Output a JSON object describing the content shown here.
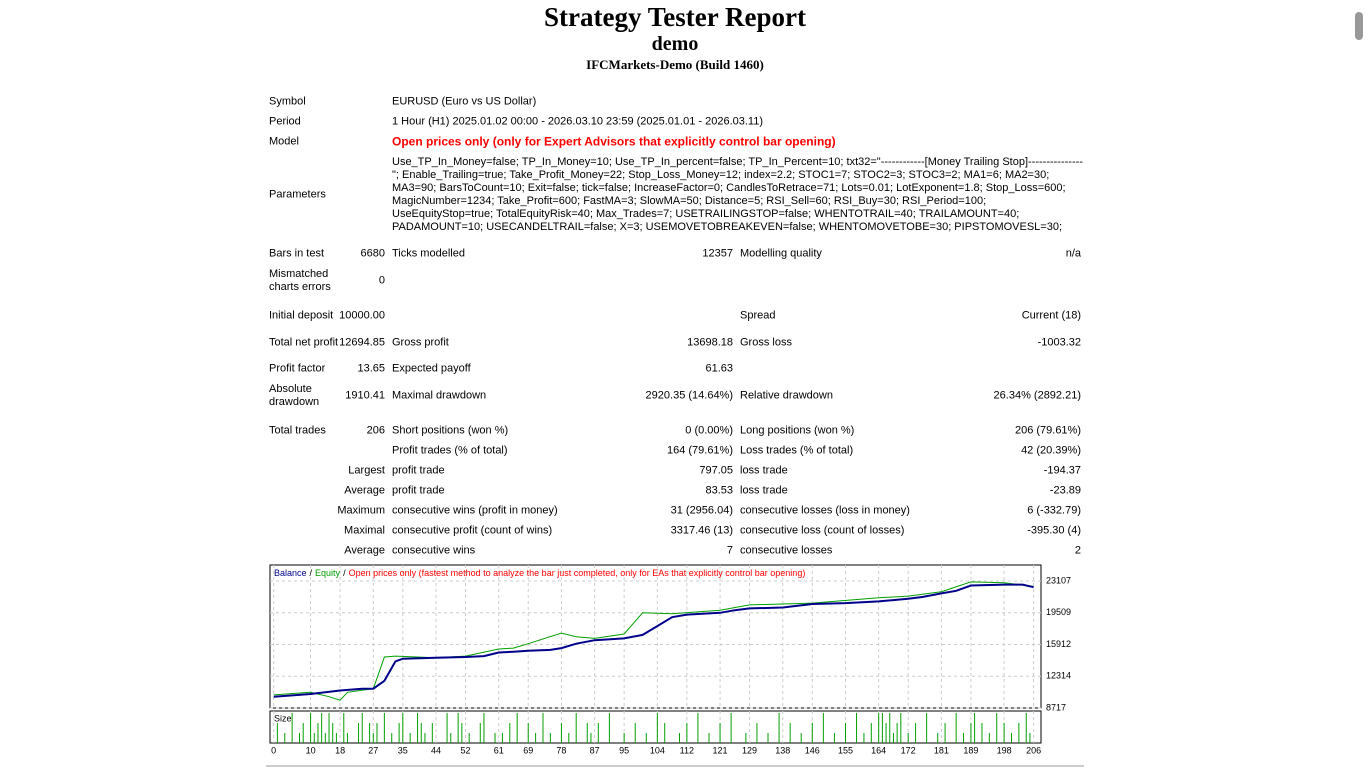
{
  "header": {
    "title": "Strategy Tester Report",
    "subtitle": "demo",
    "server": "IFCMarkets-Demo (Build 1460)"
  },
  "settings": [
    {
      "label": "Symbol",
      "value": "EURUSD (Euro vs US Dollar)"
    },
    {
      "label": "Period",
      "value": "1 Hour (H1) 2025.01.02 00:00 - 2026.03.10 23:59 (2025.01.01 - 2026.03.11)"
    },
    {
      "label": "Model",
      "value": "Open prices only (only for Expert Advisors that explicitly control bar opening)"
    },
    {
      "label": "Parameters",
      "value": "Use_TP_In_Money=false; TP_In_Money=10; Use_TP_In_percent=false; TP_In_Percent=10; txt32=\"------------[Money Trailing Stop]---------------\"; Enable_Trailing=true; Take_Profit_Money=22; Stop_Loss_Money=12; index=2.2; STOC1=7; STOC2=3; STOC3=2; MA1=6; MA2=30; MA3=90; BarsToCount=10; Exit=false; tick=false; IncreaseFactor=0; CandlesToRetrace=71; Lots=0.01; LotExponent=1.8; Stop_Loss=600; MagicNumber=1234; Take_Profit=600; FastMA=3; SlowMA=50; Distance=5; RSI_Sell=60; RSI_Buy=30; RSI_Period=100; UseEquityStop=true; TotalEquityRisk=40; Max_Trades=7; USETRAILINGSTOP=false; WHENTOTRAIL=40; TRAILAMOUNT=40; PADAMOUNT=10; USECANDELTRAIL=false; X=3; USEMOVETOBREAKEVEN=false; WHENTOMOVETOBE=30; PIPSTOMOVESL=30;"
    }
  ],
  "rows": [
    {
      "c1": "Bars in test",
      "c2": "6680",
      "c3": "Ticks modelled",
      "c4": "12357",
      "c5": "Modelling quality",
      "c6": "n/a"
    },
    {
      "c1": "Mismatched charts errors",
      "c2": "0"
    },
    {
      "c1": "Initial deposit",
      "c2": "10000.00",
      "c5": "Spread",
      "c6": "Current (18)"
    },
    {
      "c1": "Total net profit",
      "c2": "12694.85",
      "c3": "Gross profit",
      "c4": "13698.18",
      "c5": "Gross loss",
      "c6": "-1003.32"
    },
    {
      "c1": "Profit factor",
      "c2": "13.65",
      "c3": "Expected payoff",
      "c4": "61.63"
    },
    {
      "c1": "Absolute drawdown",
      "c2": "1910.41",
      "c3": "Maximal drawdown",
      "c4": "2920.35 (14.64%)",
      "c5": "Relative drawdown",
      "c6": "26.34% (2892.21)"
    },
    {
      "c1": "Total trades",
      "c2": "206",
      "c3": "Short positions (won %)",
      "c4": "0 (0.00%)",
      "c5": "Long positions (won %)",
      "c6": "206 (79.61%)"
    },
    {
      "c3": "Profit trades (% of total)",
      "c4": "164 (79.61%)",
      "c5": "Loss trades (% of total)",
      "c6": "42 (20.39%)"
    },
    {
      "c2": "Largest",
      "c3": "profit trade",
      "c4": "797.05",
      "c5": "loss trade",
      "c6": "-194.37"
    },
    {
      "c2": "Average",
      "c3": "profit trade",
      "c4": "83.53",
      "c5": "loss trade",
      "c6": "-23.89"
    },
    {
      "c2": "Maximum",
      "c3": "consecutive wins (profit in money)",
      "c4": "31 (2956.04)",
      "c5": "consecutive losses (loss in money)",
      "c6": "6 (-332.79)"
    },
    {
      "c2": "Maximal",
      "c3": "consecutive profit (count of wins)",
      "c4": "3317.46 (13)",
      "c5": "consecutive loss (count of losses)",
      "c6": "-395.30 (4)"
    },
    {
      "c2": "Average",
      "c3": "consecutive wins",
      "c4": "7",
      "c5": "consecutive losses",
      "c6": "2"
    }
  ],
  "chart_data": {
    "type": "line",
    "separator": "/",
    "note": "Open prices only (fastest method to analyze the bar just completed, only for EAs that explicitly control bar opening)",
    "series": [
      {
        "name": "Balance",
        "color": "#00008b",
        "x": [
          0,
          10,
          18,
          24,
          27,
          30,
          33,
          35,
          44,
          52,
          57,
          61,
          65,
          69,
          75,
          78,
          82,
          87,
          95,
          100,
          104,
          108,
          112,
          121,
          125,
          129,
          138,
          146,
          155,
          164,
          172,
          176,
          181,
          185,
          189,
          198,
          203,
          206
        ],
        "values": [
          10000,
          10300,
          10700,
          10900,
          10900,
          11800,
          14000,
          14300,
          14400,
          14500,
          14600,
          15000,
          15100,
          15200,
          15300,
          15500,
          16000,
          16400,
          16600,
          17000,
          18000,
          19000,
          19300,
          19500,
          19800,
          20000,
          20100,
          20500,
          20600,
          20800,
          21100,
          21300,
          21700,
          22000,
          22600,
          22700,
          22700,
          22400
        ]
      },
      {
        "name": "Equity",
        "color": "#00a000",
        "x": [
          0,
          10,
          15,
          18,
          20,
          27,
          30,
          33,
          44,
          52,
          61,
          65,
          69,
          78,
          82,
          87,
          95,
          100,
          108,
          121,
          129,
          138,
          146,
          164,
          172,
          181,
          189,
          198,
          206
        ],
        "values": [
          10200,
          10500,
          10000,
          9600,
          10500,
          10900,
          14500,
          14600,
          14400,
          14600,
          15400,
          15500,
          16000,
          17200,
          16800,
          16600,
          17100,
          19500,
          19400,
          19800,
          20400,
          20500,
          20600,
          21200,
          21400,
          21900,
          23000,
          22900,
          22500
        ]
      }
    ],
    "xlim": [
      -1,
      208
    ],
    "xticks": [
      0,
      10,
      18,
      27,
      35,
      44,
      52,
      61,
      69,
      78,
      87,
      95,
      104,
      112,
      121,
      129,
      138,
      146,
      155,
      164,
      172,
      181,
      189,
      198,
      206
    ],
    "ylim": [
      8717,
      24920
    ],
    "yticks": [
      8717,
      12314,
      15912,
      19509,
      23107
    ],
    "grid": true,
    "size": {
      "label": "Size",
      "color": "#00a000",
      "ylim": [
        0,
        3
      ],
      "x": [
        1,
        3,
        5,
        7,
        8,
        10,
        11,
        12,
        13,
        14,
        15,
        16,
        17,
        19,
        20,
        23,
        24,
        26,
        27,
        28,
        30,
        32,
        34,
        35,
        37,
        39,
        40,
        41,
        43,
        47,
        48,
        50,
        51,
        53,
        56,
        57,
        60,
        62,
        64,
        66,
        69,
        71,
        73,
        75,
        78,
        80,
        82,
        85,
        86,
        88,
        91,
        95,
        98,
        101,
        104,
        106,
        110,
        112,
        115,
        118,
        121,
        124,
        128,
        131,
        134,
        137,
        140,
        143,
        146,
        149,
        152,
        155,
        158,
        160,
        162,
        164,
        165,
        166,
        167,
        168,
        169,
        170,
        172,
        174,
        177,
        180,
        182,
        185,
        187,
        189,
        190,
        192,
        194,
        196,
        198,
        200,
        202,
        204,
        205
      ],
      "values": [
        2,
        1,
        3,
        1,
        2,
        3,
        1,
        2,
        3,
        1,
        3,
        2,
        1,
        3,
        1,
        2,
        3,
        2,
        1,
        2,
        3,
        1,
        2,
        3,
        1,
        3,
        2,
        1,
        2,
        3,
        1,
        3,
        2,
        1,
        2,
        3,
        1,
        1,
        2,
        3,
        2,
        1,
        3,
        1,
        2,
        1,
        3,
        2,
        1,
        2,
        3,
        1,
        2,
        1,
        3,
        2,
        1,
        2,
        3,
        1,
        2,
        3,
        1,
        2,
        1,
        3,
        2,
        1,
        2,
        3,
        1,
        2,
        3,
        1,
        2,
        3,
        3,
        2,
        3,
        1,
        2,
        3,
        1,
        2,
        3,
        1,
        2,
        3,
        1,
        2,
        3,
        2,
        1,
        3,
        2,
        1,
        2,
        3,
        1
      ]
    }
  }
}
